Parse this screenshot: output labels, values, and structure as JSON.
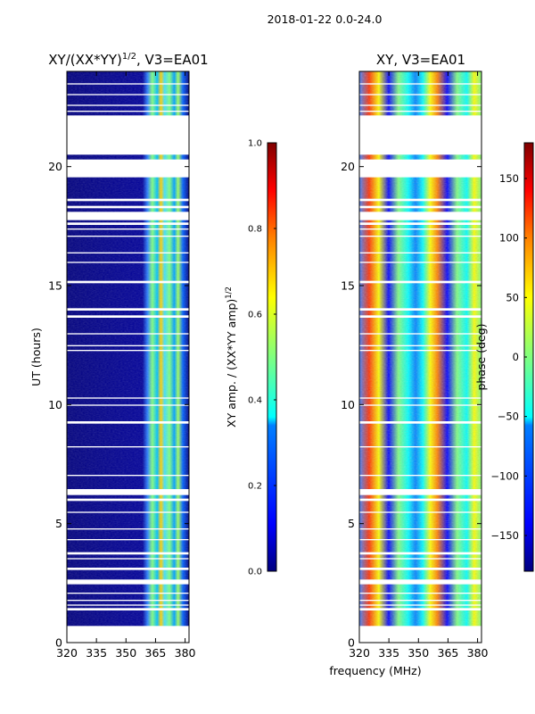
{
  "figure": {
    "suptitle": "2018-01-22 0.0-24.0",
    "xlabel": "frequency (MHz)",
    "ylabel": "UT (hours)"
  },
  "colors": {
    "background": "#ffffff",
    "flagged": "#ffffff",
    "jet": [
      "#00007f",
      "#0000ff",
      "#007fff",
      "#00ffff",
      "#7fff7f",
      "#ffff00",
      "#ff7f00",
      "#ff0000",
      "#7f0000"
    ]
  },
  "chart_data": [
    {
      "type": "heatmap",
      "title": "XY/(XX*YY)",
      "title_superscript": "1/2",
      "title_suffix": ", V3=EA01",
      "xlim": [
        320,
        382
      ],
      "ylim": [
        0,
        24
      ],
      "xticks": [
        320,
        335,
        350,
        365,
        380
      ],
      "xtick_labels": [
        "320",
        "335",
        "350",
        "365",
        "380"
      ],
      "yticks": [
        0,
        5,
        10,
        15,
        20
      ],
      "ytick_labels": [
        "0",
        "5",
        "10",
        "15",
        "20"
      ],
      "data_start_ut": 0.6,
      "colorbar": {
        "label": "XY amp. / (XX*YY amp)",
        "label_superscript": "1/2",
        "vmin": 0.0,
        "vmax": 1.0,
        "ticks": [
          0.0,
          0.2,
          0.4,
          0.6,
          0.8,
          1.0
        ],
        "tick_labels": [
          "0.0",
          "0.2",
          "0.4",
          "0.6",
          "0.8",
          "1.0"
        ]
      }
    },
    {
      "type": "heatmap",
      "title": "XY, V3=EA01",
      "xlim": [
        320,
        382
      ],
      "ylim": [
        0,
        24
      ],
      "xticks": [
        320,
        335,
        350,
        365,
        380
      ],
      "xtick_labels": [
        "320",
        "335",
        "350",
        "365",
        "380"
      ],
      "yticks": [
        0,
        5,
        10,
        15,
        20
      ],
      "ytick_labels": [
        "0",
        "5",
        "10",
        "15",
        "20"
      ],
      "data_start_ut": 0.6,
      "colorbar": {
        "label": "phase (deg)",
        "vmin": -180,
        "vmax": 180,
        "ticks": [
          -150,
          -100,
          -50,
          0,
          50,
          100,
          150
        ],
        "tick_labels": [
          "−150",
          "−100",
          "−50",
          "0",
          "50",
          "100",
          "150"
        ]
      }
    }
  ],
  "flagged_ut_ranges": [
    [
      0.6,
      0.7
    ],
    [
      1.35,
      1.45
    ],
    [
      1.55,
      1.6
    ],
    [
      1.75,
      1.8
    ],
    [
      2.05,
      2.1
    ],
    [
      2.45,
      2.65
    ],
    [
      3.05,
      3.15
    ],
    [
      3.5,
      3.55
    ],
    [
      3.7,
      3.8
    ],
    [
      4.3,
      4.35
    ],
    [
      4.75,
      4.8
    ],
    [
      5.45,
      5.5
    ],
    [
      5.95,
      6.05
    ],
    [
      6.2,
      6.45
    ],
    [
      7.0,
      7.05
    ],
    [
      8.2,
      8.25
    ],
    [
      9.2,
      9.3
    ],
    [
      9.95,
      10.0
    ],
    [
      10.25,
      10.3
    ],
    [
      12.25,
      12.3
    ],
    [
      12.45,
      12.5
    ],
    [
      12.95,
      13.0
    ],
    [
      13.65,
      13.75
    ],
    [
      13.95,
      14.05
    ],
    [
      15.1,
      15.2
    ],
    [
      15.95,
      16.0
    ],
    [
      16.35,
      16.4
    ],
    [
      17.05,
      17.1
    ],
    [
      17.35,
      17.4
    ],
    [
      17.55,
      17.65
    ],
    [
      17.75,
      18.1
    ],
    [
      18.25,
      18.35
    ],
    [
      18.55,
      18.65
    ],
    [
      19.55,
      20.3
    ],
    [
      20.5,
      22.15
    ],
    [
      22.3,
      22.35
    ],
    [
      22.55,
      22.6
    ],
    [
      23.0,
      23.05
    ],
    [
      23.45,
      23.5
    ]
  ]
}
